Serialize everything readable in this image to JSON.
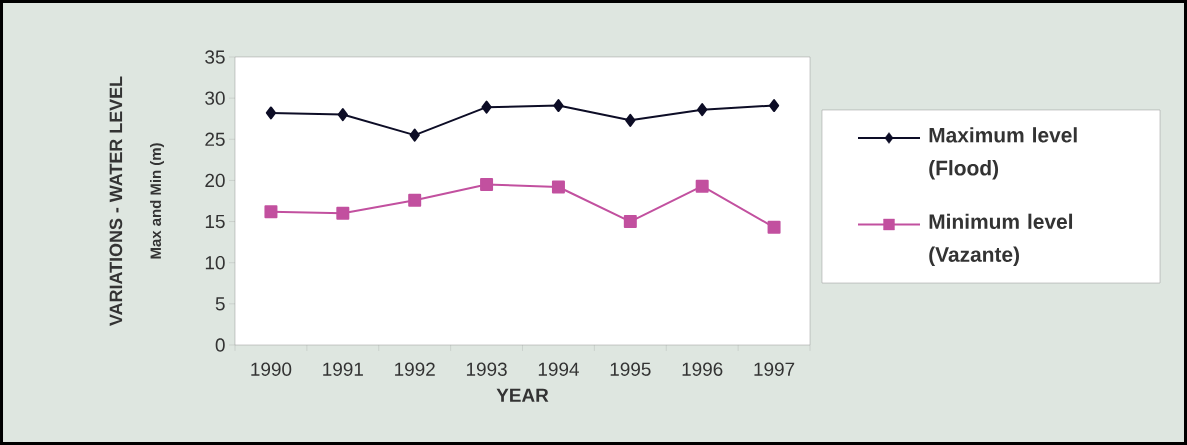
{
  "chart_data": {
    "type": "line",
    "xlabel": "YEAR",
    "ylabel": "VARIATIONS - WATER LEVEL",
    "annotations": [
      "Max and Min (m)"
    ],
    "categories": [
      "1990",
      "1991",
      "1992",
      "1993",
      "1994",
      "1995",
      "1996",
      "1997"
    ],
    "series": [
      {
        "name": "Maximum level (Flood)",
        "color": "#0d0d26",
        "marker": "diamond",
        "values": [
          28.2,
          28.0,
          25.5,
          28.9,
          29.1,
          27.3,
          28.6,
          29.1
        ]
      },
      {
        "name": "Minimum level (Vazante)",
        "color": "#c2509f",
        "marker": "square",
        "values": [
          16.2,
          16.0,
          17.6,
          19.5,
          19.2,
          15.0,
          19.3,
          14.3
        ]
      }
    ],
    "ylim": [
      0,
      35
    ],
    "yticks": [
      0,
      5,
      10,
      15,
      20,
      25,
      30,
      35
    ],
    "grid": false,
    "legend": "right",
    "line_style": "solid"
  }
}
